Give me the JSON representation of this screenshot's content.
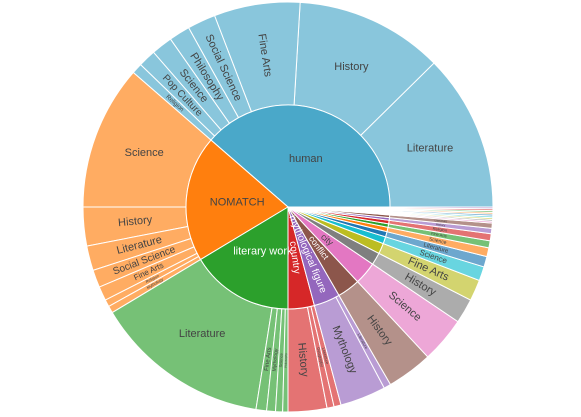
{
  "chart_data": {
    "type": "sunburst",
    "nodes": [
      {
        "label": "human",
        "color": "#4aa8c9",
        "children": [
          {
            "label": "Literature",
            "value": 446
          },
          {
            "label": "History",
            "value": 420
          },
          {
            "label": "Fine Arts",
            "value": 244
          },
          {
            "label": "Social Science",
            "value": 80
          },
          {
            "label": "Philosophy",
            "value": 60
          },
          {
            "label": "Science",
            "value": 60
          },
          {
            "label": "Pop Culture",
            "value": 50
          },
          {
            "label": "Religion",
            "value": 30
          }
        ]
      },
      {
        "label": "NOMATCH",
        "color": "#ff7f0e",
        "children": [
          {
            "label": "Science",
            "value": 410
          },
          {
            "label": "History",
            "value": 110
          },
          {
            "label": "Literature",
            "value": 70
          },
          {
            "label": "Social Science",
            "value": 50
          },
          {
            "label": "Fine Arts",
            "value": 40
          },
          {
            "label": "Religion",
            "value": 20
          },
          {
            "label": "Mythology",
            "value": 20
          }
        ]
      },
      {
        "label": "literary work",
        "color": "#2ca02c",
        "children": [
          {
            "label": "Literature",
            "value": 500
          },
          {
            "label": "Fine Arts",
            "value": 30
          },
          {
            "label": "Mythology",
            "value": 25
          },
          {
            "label": "Science",
            "value": 20
          },
          {
            "label": "Philosophy",
            "value": 15
          }
        ]
      },
      {
        "label": "country",
        "color": "#d62728",
        "children": [
          {
            "label": "History",
            "value": 110
          },
          {
            "label": "Geography",
            "value": 20
          },
          {
            "label": "Literature",
            "value": 20
          }
        ]
      },
      {
        "label": "mythological figure",
        "color": "#9467bd",
        "children": [
          {
            "label": "Mythology",
            "value": 130
          },
          {
            "label": "Literature",
            "value": 20
          }
        ]
      },
      {
        "label": "conflict",
        "color": "#8c564b",
        "children": [
          {
            "label": "History",
            "value": 130
          }
        ]
      },
      {
        "label": "city",
        "color": "#e377c2",
        "children": [
          {
            "label": "Science",
            "value": 130
          }
        ]
      },
      {
        "label": null,
        "color": "#7f7f7f",
        "children": [
          {
            "label": "History",
            "value": 70
          }
        ]
      },
      {
        "label": null,
        "color": "#bcbd22",
        "children": [
          {
            "label": "Fine Arts",
            "value": 60
          }
        ]
      },
      {
        "label": null,
        "color": "#17becf",
        "children": [
          {
            "label": "Science",
            "value": 40
          }
        ]
      },
      {
        "label": null,
        "color": "#1f77b4",
        "children": [
          {
            "label": "Literature",
            "value": 30
          }
        ]
      },
      {
        "label": null,
        "color": "#ff7f0e",
        "children": [
          {
            "label": "Science",
            "value": 25
          }
        ]
      },
      {
        "label": null,
        "color": "#2ca02c",
        "children": [
          {
            "label": "Fine Arts",
            "value": 20
          }
        ]
      },
      {
        "label": null,
        "color": "#d62728",
        "children": [
          {
            "label": "Religion",
            "value": 20
          }
        ]
      },
      {
        "label": null,
        "color": "#9467bd",
        "children": [
          {
            "label": "History",
            "value": 15
          }
        ]
      },
      {
        "label": null,
        "color": "#8c564b",
        "children": [
          {
            "label": "Literature",
            "value": 15
          }
        ]
      },
      {
        "label": null,
        "color": "#e377c2",
        "children": [
          {
            "label": null,
            "value": 5
          }
        ]
      },
      {
        "label": null,
        "color": "#7f7f7f",
        "children": [
          {
            "label": null,
            "value": 5
          }
        ]
      },
      {
        "label": null,
        "color": "#bcbd22",
        "children": [
          {
            "label": null,
            "value": 5
          }
        ]
      },
      {
        "label": null,
        "color": "#17becf",
        "children": [
          {
            "label": null,
            "value": 5
          }
        ]
      },
      {
        "label": null,
        "color": "#1f77b4",
        "children": [
          {
            "label": null,
            "value": 5
          }
        ]
      },
      {
        "label": null,
        "color": "#ff7f0e",
        "children": [
          {
            "label": null,
            "value": 5
          }
        ]
      },
      {
        "label": null,
        "color": "#2ca02c",
        "children": [
          {
            "label": null,
            "value": 5
          }
        ]
      },
      {
        "label": null,
        "color": "#d62728",
        "children": [
          {
            "label": null,
            "value": 5
          }
        ]
      },
      {
        "label": null,
        "color": "#9467bd",
        "children": [
          {
            "label": null,
            "value": 5
          }
        ]
      }
    ]
  }
}
